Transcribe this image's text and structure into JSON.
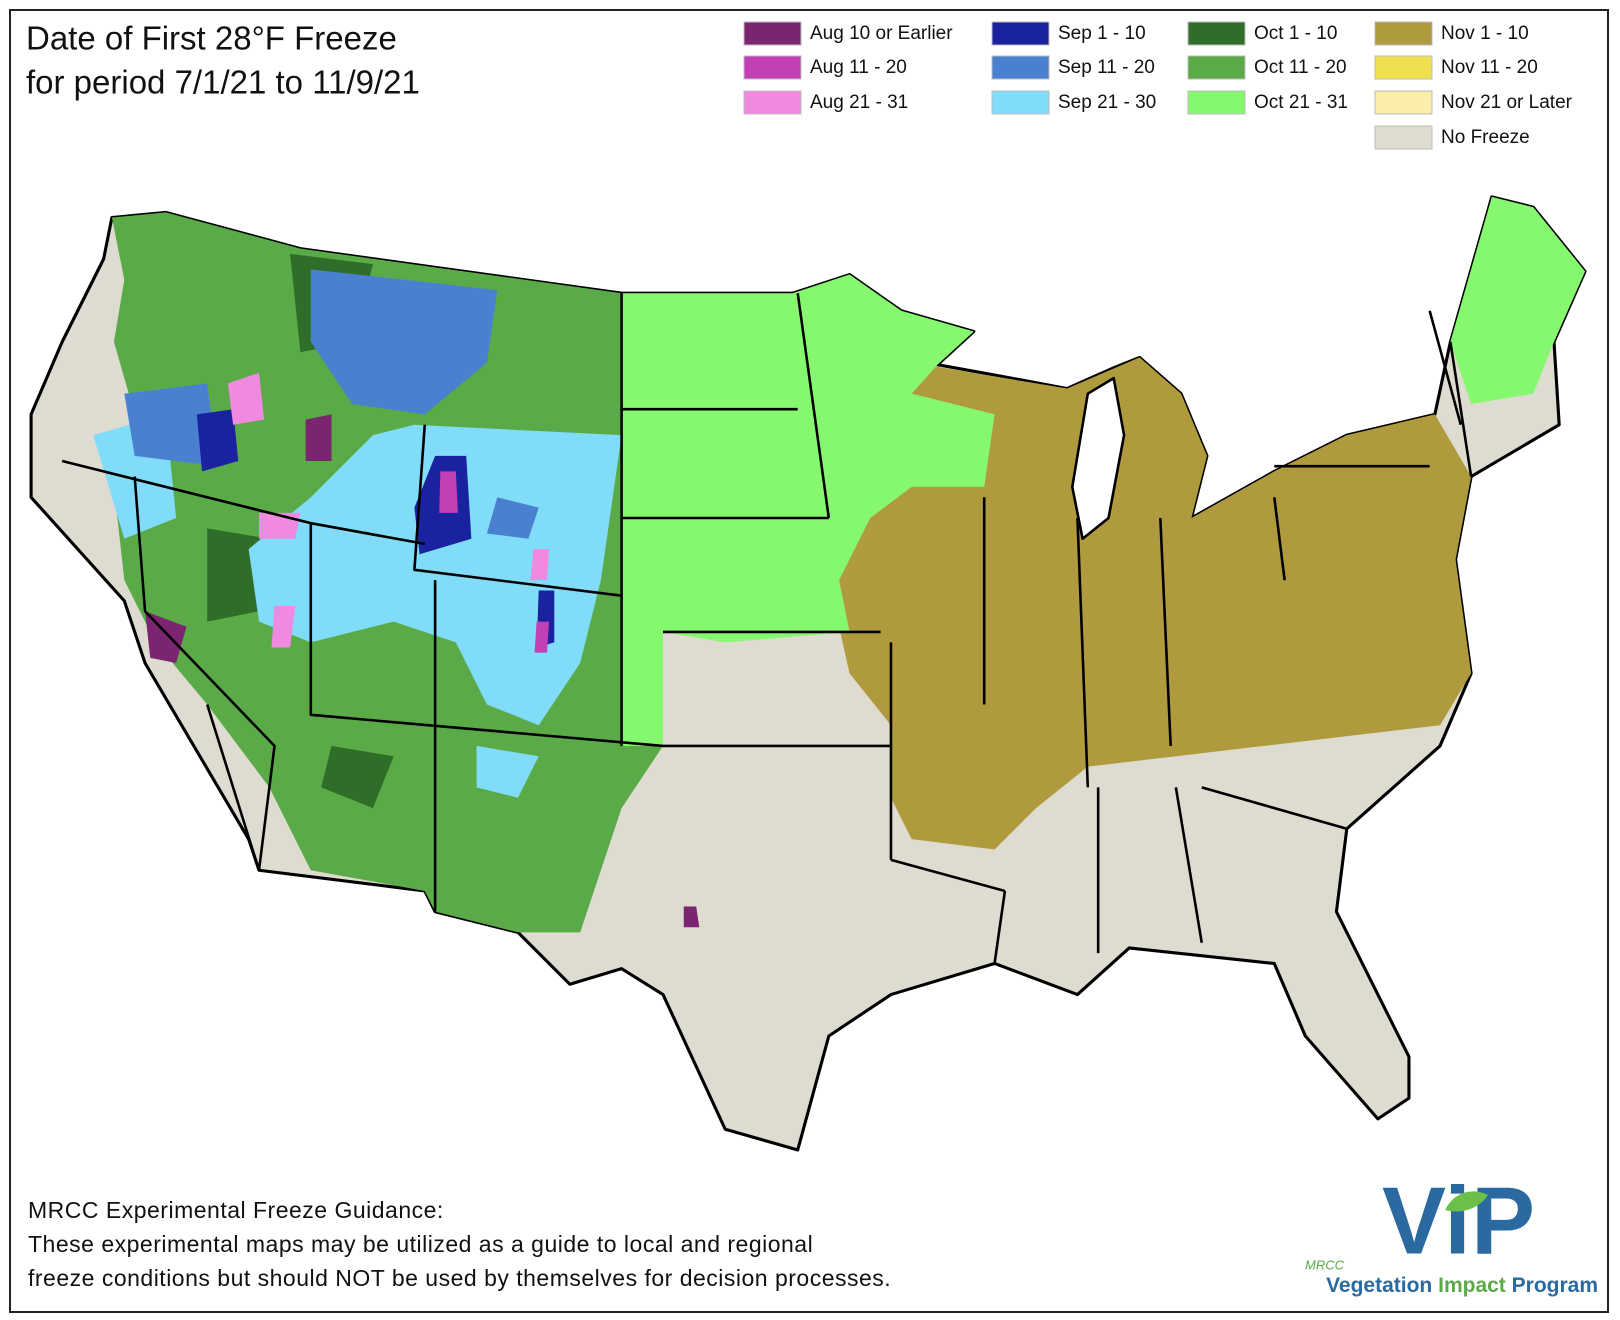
{
  "title": [
    "Date of First 28°F Freeze",
    "for period 7/1/21 to 11/9/21"
  ],
  "legend": [
    {
      "label": "Aug 10 or Earlier",
      "color": "#7b2470"
    },
    {
      "label": "Aug 11 - 20",
      "color": "#c23fb5"
    },
    {
      "label": "Aug 21 - 31",
      "color": "#f08ae0"
    },
    {
      "label": "Sep 1 - 10",
      "color": "#1a22a0"
    },
    {
      "label": "Sep 11 - 20",
      "color": "#4a80d0"
    },
    {
      "label": "Sep 21 - 30",
      "color": "#80dcf8"
    },
    {
      "label": "Oct 1 - 10",
      "color": "#2f6e28"
    },
    {
      "label": "Oct 11 - 20",
      "color": "#5aaa48"
    },
    {
      "label": "Oct 21 - 31",
      "color": "#86f870"
    },
    {
      "label": "Nov 1 - 10",
      "color": "#b09a3e"
    },
    {
      "label": "Nov 11 - 20",
      "color": "#f0e050"
    },
    {
      "label": "Nov 21 or Later",
      "color": "#fbeea8"
    },
    {
      "label": "No Freeze",
      "color": "#dedbd0"
    }
  ],
  "footer": {
    "heading": "MRCC Experimental Freeze Guidance:",
    "lines": [
      "These experimental maps may be utilized as a guide to local and regional",
      "freeze conditions but should NOT be used by themselves for decision processes."
    ]
  },
  "logo": {
    "small": "MRCC",
    "mark": "ViP",
    "name": [
      "Vegetation",
      "Impact",
      "Program"
    ]
  }
}
